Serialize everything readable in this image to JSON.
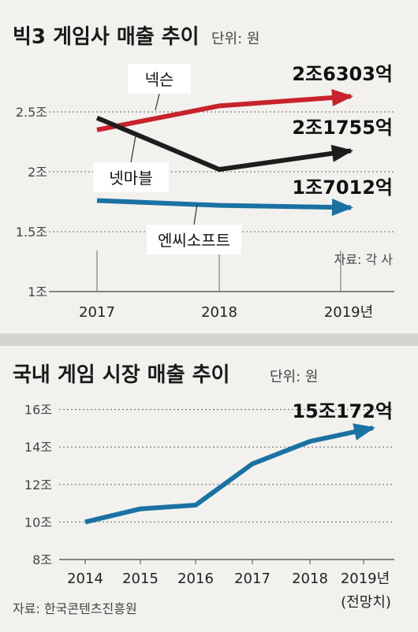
{
  "colors": {
    "background": "#f2f1ee",
    "nexon": "#c8232c",
    "netmarble": "#1d1d1d",
    "ncsoft": "#1a72a3",
    "market": "#1a72a3",
    "divider": "#d6d4ce",
    "grid": "#555555"
  },
  "chart_data": [
    {
      "type": "line",
      "title": "빅3 게임사 매출 추이",
      "unit_note": "단위: 원",
      "source": "자료: 각 사",
      "x": [
        "2017",
        "2018",
        "2019년"
      ],
      "y_ticks": [
        "1조",
        "1.5조",
        "2조",
        "2.5조"
      ],
      "ylim": [
        1.0,
        2.7
      ],
      "grid": "dotted horizontal",
      "series": [
        {
          "name": "넥슨",
          "color": "#c8232c",
          "values": [
            2.35,
            2.55,
            2.6303
          ],
          "end_label": "2조6303억"
        },
        {
          "name": "넷마블",
          "color": "#1d1d1d",
          "values": [
            2.45,
            2.02,
            2.1755
          ],
          "end_label": "2조1755억"
        },
        {
          "name": "엔씨소프트",
          "color": "#1a72a3",
          "values": [
            1.76,
            1.72,
            1.7012
          ],
          "end_label": "1조7012억"
        }
      ]
    },
    {
      "type": "line",
      "title": "국내 게임 시장 매출 추이",
      "unit_note": "단위: 원",
      "source": "자료: 한국콘텐츠진흥원",
      "x": [
        "2014",
        "2015",
        "2016",
        "2017",
        "2018",
        "2019년"
      ],
      "x_note": "(전망치)",
      "y_ticks": [
        "8조",
        "10조",
        "12조",
        "14조",
        "16조"
      ],
      "ylim": [
        8,
        16.5
      ],
      "grid": "dotted horizontal",
      "series": [
        {
          "name": "",
          "color": "#1a72a3",
          "values": [
            10.0,
            10.7,
            10.9,
            13.1,
            14.3,
            15.0172
          ],
          "end_label": "15조172억"
        }
      ]
    }
  ]
}
